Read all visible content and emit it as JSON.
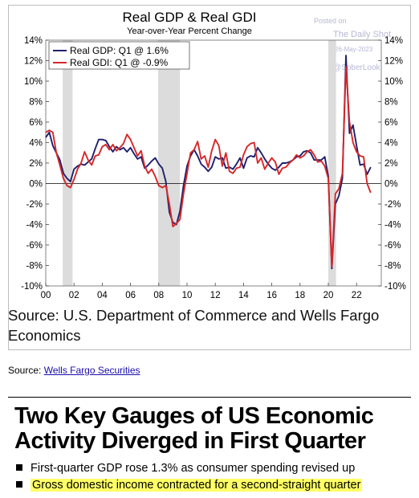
{
  "watermark": {
    "posted_on": "Posted on",
    "site": "The Daily Shot",
    "date": "26-May-2023",
    "handle": "@SoberLook"
  },
  "chart_data": {
    "type": "line",
    "title": "Real GDP & Real GDI",
    "subtitle": "Year-over-Year Percent Change",
    "x_ticks": [
      "00",
      "02",
      "04",
      "06",
      "08",
      "10",
      "12",
      "14",
      "16",
      "18",
      "20",
      "22"
    ],
    "x_range": [
      2000,
      2023.75
    ],
    "y_ticks": [
      "-10%",
      "-8%",
      "-6%",
      "-4%",
      "-2%",
      "0%",
      "2%",
      "4%",
      "6%",
      "8%",
      "10%",
      "12%",
      "14%"
    ],
    "y_range": [
      -10,
      14
    ],
    "recessions": [
      [
        2001.2,
        2001.9
      ],
      [
        2007.95,
        2009.5
      ],
      [
        2020.0,
        2020.55
      ]
    ],
    "legend_position": "top-left",
    "series": [
      {
        "name": "Real GDP: Q1 @ 1.6%",
        "color": "#1f1f6e",
        "x": [
          2000.0,
          2000.25,
          2000.5,
          2000.75,
          2001.0,
          2001.25,
          2001.5,
          2001.75,
          2002.0,
          2002.25,
          2002.5,
          2002.75,
          2003.0,
          2003.25,
          2003.5,
          2003.75,
          2004.0,
          2004.25,
          2004.5,
          2004.75,
          2005.0,
          2005.25,
          2005.5,
          2005.75,
          2006.0,
          2006.25,
          2006.5,
          2006.75,
          2007.0,
          2007.25,
          2007.5,
          2007.75,
          2008.0,
          2008.25,
          2008.5,
          2008.75,
          2009.0,
          2009.25,
          2009.5,
          2009.75,
          2010.0,
          2010.25,
          2010.5,
          2010.75,
          2011.0,
          2011.25,
          2011.5,
          2011.75,
          2012.0,
          2012.25,
          2012.5,
          2012.75,
          2013.0,
          2013.25,
          2013.5,
          2013.75,
          2014.0,
          2014.25,
          2014.5,
          2014.75,
          2015.0,
          2015.25,
          2015.5,
          2015.75,
          2016.0,
          2016.25,
          2016.5,
          2016.75,
          2017.0,
          2017.25,
          2017.5,
          2017.75,
          2018.0,
          2018.25,
          2018.5,
          2018.75,
          2019.0,
          2019.25,
          2019.5,
          2019.75,
          2020.0,
          2020.25,
          2020.5,
          2020.75,
          2021.0,
          2021.25,
          2021.5,
          2021.75,
          2022.0,
          2022.25,
          2022.5,
          2022.75,
          2023.0
        ],
        "values": [
          4.5,
          5.0,
          3.7,
          3.0,
          2.3,
          1.0,
          0.5,
          0.2,
          1.4,
          1.7,
          1.9,
          1.8,
          2.1,
          2.4,
          3.4,
          4.3,
          4.3,
          4.2,
          3.6,
          3.1,
          3.6,
          3.3,
          3.5,
          3.1,
          3.5,
          2.9,
          2.4,
          2.6,
          1.5,
          1.8,
          2.2,
          2.5,
          1.9,
          1.5,
          0.2,
          -2.8,
          -3.8,
          -4.0,
          -2.7,
          -0.2,
          1.7,
          2.7,
          3.3,
          2.7,
          1.9,
          1.6,
          1.2,
          1.6,
          2.6,
          2.4,
          2.5,
          1.5,
          1.6,
          1.4,
          1.9,
          2.5,
          1.5,
          2.5,
          2.7,
          2.6,
          3.5,
          3.0,
          2.4,
          1.9,
          1.5,
          1.3,
          1.6,
          2.0,
          2.0,
          2.1,
          2.3,
          2.6,
          2.7,
          3.1,
          3.2,
          3.0,
          2.3,
          2.3,
          2.3,
          2.6,
          0.7,
          -8.3,
          -2.0,
          -1.2,
          0.5,
          12.5,
          4.9,
          5.7,
          3.7,
          1.8,
          1.9,
          0.9,
          1.6
        ]
      },
      {
        "name": "Real GDI: Q1 @ -0.9%",
        "color": "#d62728",
        "x": [
          2000.0,
          2000.25,
          2000.5,
          2000.75,
          2001.0,
          2001.25,
          2001.5,
          2001.75,
          2002.0,
          2002.25,
          2002.5,
          2002.75,
          2003.0,
          2003.25,
          2003.5,
          2003.75,
          2004.0,
          2004.25,
          2004.5,
          2004.75,
          2005.0,
          2005.25,
          2005.5,
          2005.75,
          2006.0,
          2006.25,
          2006.5,
          2006.75,
          2007.0,
          2007.25,
          2007.5,
          2007.75,
          2008.0,
          2008.25,
          2008.5,
          2008.75,
          2009.0,
          2009.25,
          2009.5,
          2009.75,
          2010.0,
          2010.25,
          2010.5,
          2010.75,
          2011.0,
          2011.25,
          2011.5,
          2011.75,
          2012.0,
          2012.25,
          2012.5,
          2012.75,
          2013.0,
          2013.25,
          2013.5,
          2013.75,
          2014.0,
          2014.25,
          2014.5,
          2014.75,
          2015.0,
          2015.25,
          2015.5,
          2015.75,
          2016.0,
          2016.25,
          2016.5,
          2016.75,
          2017.0,
          2017.25,
          2017.5,
          2017.75,
          2018.0,
          2018.25,
          2018.5,
          2018.75,
          2019.0,
          2019.25,
          2019.5,
          2019.75,
          2020.0,
          2020.25,
          2020.5,
          2020.75,
          2021.0,
          2021.25,
          2021.5,
          2021.75,
          2022.0,
          2022.25,
          2022.5,
          2022.75,
          2023.0
        ],
        "values": [
          5.0,
          5.2,
          5.0,
          3.0,
          1.8,
          0.5,
          -0.2,
          -0.4,
          0.4,
          1.4,
          2.0,
          3.1,
          2.3,
          1.8,
          2.7,
          2.8,
          3.6,
          3.8,
          3.3,
          3.8,
          3.2,
          3.5,
          3.9,
          4.8,
          4.3,
          3.5,
          2.7,
          3.2,
          1.7,
          1.0,
          1.4,
          0.7,
          -0.2,
          -0.4,
          -0.2,
          -2.0,
          -4.2,
          -3.9,
          -3.5,
          -1.0,
          1.0,
          3.0,
          3.3,
          4.1,
          2.4,
          2.7,
          1.6,
          3.2,
          4.3,
          3.7,
          1.7,
          3.0,
          1.2,
          1.0,
          1.5,
          1.6,
          2.8,
          3.6,
          3.9,
          4.0,
          2.0,
          2.5,
          1.4,
          2.0,
          2.5,
          2.1,
          0.9,
          1.5,
          1.6,
          2.0,
          2.3,
          2.8,
          2.5,
          2.7,
          3.1,
          3.3,
          2.8,
          2.1,
          2.2,
          1.7,
          0.5,
          -8.1,
          -1.0,
          -0.5,
          1.0,
          11.4,
          6.0,
          4.0,
          3.1,
          2.7,
          2.6,
          0.0,
          -0.9
        ]
      }
    ]
  },
  "source_note": "Source: U.S. Department of Commerce and Wells Fargo Economics",
  "source_line": {
    "label": "Source: ",
    "link_text": "Wells Fargo Securities"
  },
  "headline": {
    "title": "Two Key Gauges of US Economic Activity Diverged in First Quarter",
    "bullets": [
      "First-quarter GDP rose 1.3% as consumer spending revised up",
      "Gross domestic income contracted for a second-straight quarter"
    ]
  }
}
